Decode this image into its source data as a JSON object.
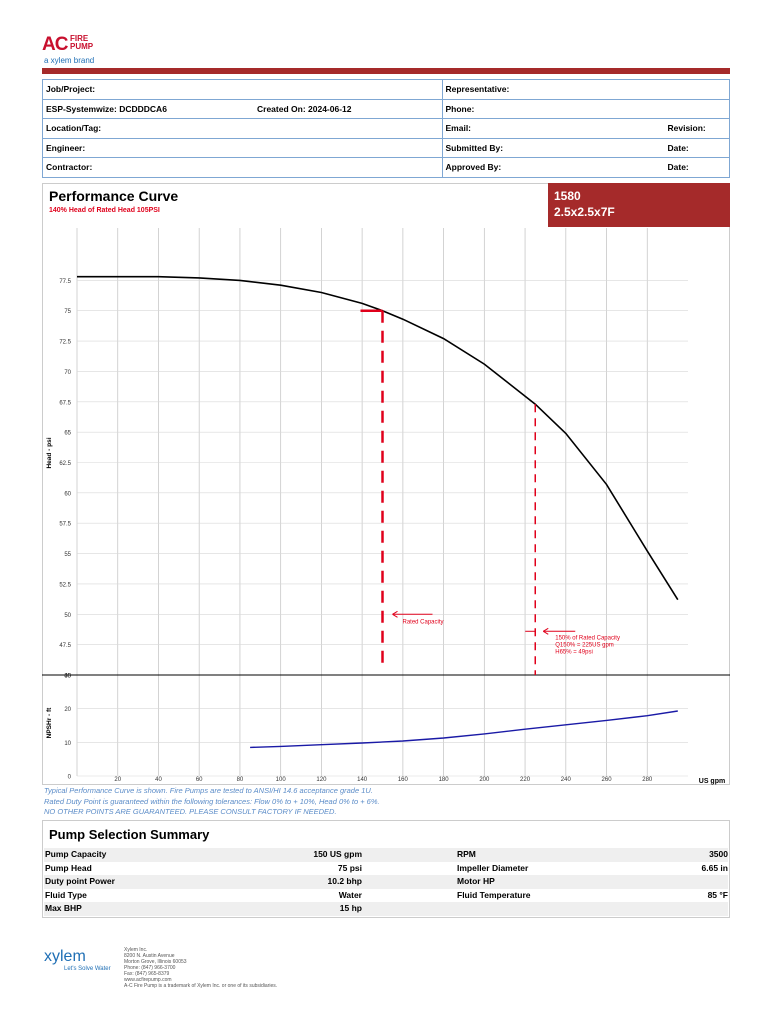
{
  "logo": {
    "ac": "AC",
    "fire_pump": "FIRE PUMP",
    "brand": "a xylem brand"
  },
  "info": {
    "job_project": "Job/Project:",
    "representative": "Representative:",
    "esp": "ESP-Systemwize: DCDDDCA6",
    "created": "Created On: 2024-06-12",
    "phone": "Phone:",
    "location": "Location/Tag:",
    "email": "Email:",
    "revision": "Revision:",
    "engineer": "Engineer:",
    "submitted": "Submitted By:",
    "date1": "Date:",
    "contractor": "Contractor:",
    "approved": "Approved By:",
    "date2": "Date:"
  },
  "performance": {
    "title": "Performance Curve",
    "subtitle": "140% Head of Rated Head 105PSI",
    "badge_line1": "1580",
    "badge_line2": "2.5x2.5x7F"
  },
  "chart_data": {
    "type": "line",
    "xlabel": "US gpm",
    "ylabel_head": "Head - psi",
    "ylabel_npsh": "NPSHr - ft",
    "x_ticks": [
      "20",
      "40",
      "60",
      "80",
      "100",
      "120",
      "140",
      "160",
      "180",
      "200",
      "220",
      "240",
      "260",
      "280"
    ],
    "head_ticks": [
      "45",
      "47.5",
      "50",
      "52.5",
      "55",
      "57.5",
      "60",
      "62.5",
      "65",
      "67.5",
      "70",
      "72.5",
      "75",
      "77.5"
    ],
    "npsh_ticks": [
      "0",
      "10",
      "20",
      "30"
    ],
    "head_ylim": [
      45,
      80
    ],
    "npsh_ylim": [
      0,
      30
    ],
    "xlim": [
      0,
      300
    ],
    "series": [
      {
        "values_x": [
          0,
          20,
          40,
          60,
          80,
          100,
          120,
          140,
          150,
          160,
          180,
          200,
          225,
          240,
          260,
          280,
          295
        ],
        "values_y": [
          77.8,
          77.8,
          77.8,
          77.7,
          77.5,
          77.1,
          76.5,
          75.6,
          75.0,
          74.3,
          72.7,
          70.6,
          67.3,
          64.9,
          60.7,
          55.2,
          51.2
        ],
        "color": "#000000"
      },
      {
        "values_x": [
          85,
          100,
          120,
          140,
          160,
          180,
          200,
          220,
          240,
          260,
          280,
          295
        ],
        "values_y": [
          8.5,
          8.8,
          9.3,
          9.8,
          10.4,
          11.3,
          12.5,
          13.9,
          15.2,
          16.5,
          17.9,
          19.3
        ],
        "color": "#1a1aa6"
      }
    ],
    "annotations": [
      {
        "text": "Rated Capacity",
        "x": 150,
        "head": 75
      },
      {
        "text": "150% of Rated Capacity",
        "line2": "Q150% = 225US gpm",
        "line3": "H65% = 49psi",
        "x": 225
      }
    ],
    "grid": true
  },
  "notes": {
    "line1": "Typical Performance Curve is shown. Fire Pumps are tested to ANSI/HI 14.6 acceptance grade 1U.",
    "line2": "Rated Duty Point is guaranteed within the following tolerances: Flow 0% to + 10%, Head 0% to + 6%.",
    "line3": "NO OTHER POINTS ARE GUARANTEED. PLEASE CONSULT FACTORY IF NEEDED."
  },
  "summary": {
    "title": "Pump Selection Summary",
    "rows": [
      {
        "l1": "Pump Capacity",
        "v1": "150 US gpm",
        "l2": "RPM",
        "v2": "3500"
      },
      {
        "l1": "Pump Head",
        "v1": "75 psi",
        "l2": "Impeller Diameter",
        "v2": "6.65 in"
      },
      {
        "l1": "Duty point Power",
        "v1": "10.2 bhp",
        "l2": "Motor HP",
        "v2": ""
      },
      {
        "l1": "Fluid Type",
        "v1": "Water",
        "l2": "Fluid Temperature",
        "v2": "85 °F"
      },
      {
        "l1": "Max BHP",
        "v1": "15 hp",
        "l2": "",
        "v2": ""
      }
    ]
  },
  "footer": {
    "xylem": "xylem",
    "tagline": "Let's Solve Water",
    "addr1": "Xylem Inc.",
    "addr2": "8200 N. Austin Avenue",
    "addr3": "Morton Grove, Illinois 60053",
    "addr4": "Phone: (847) 966-3700",
    "addr5": "Fax: (847) 965-8379",
    "addr6": "www.acfirepump.com",
    "addr7": "A-C Fire Pump is a trademark of Xylem Inc. or one of its subsidiaries."
  }
}
